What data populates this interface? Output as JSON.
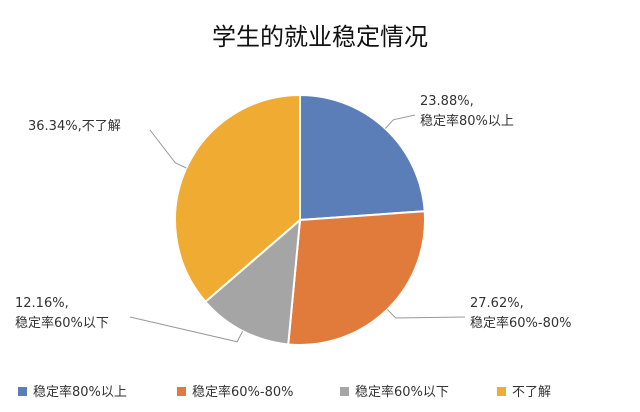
{
  "chart_data": {
    "type": "pie",
    "title": "学生的就业稳定情况",
    "categories": [
      "稳定率80%以上",
      "稳定率60%-80%",
      "稳定率60%以下",
      "不了解"
    ],
    "values": [
      23.88,
      27.62,
      12.16,
      36.34
    ],
    "value_labels": [
      "23.88%,",
      "27.62%,",
      "12.16%,",
      "36.34%,"
    ],
    "colors": [
      "#5b7db8",
      "#e07b3c",
      "#a5a5a5",
      "#f0ac32"
    ],
    "legend": "bottom"
  }
}
